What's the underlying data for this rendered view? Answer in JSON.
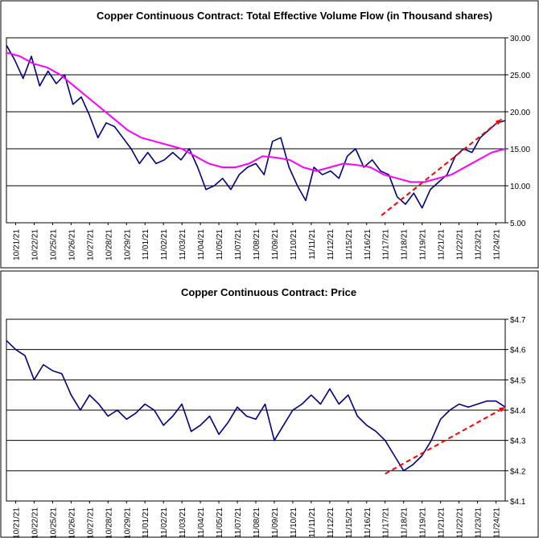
{
  "chart_data": [
    {
      "type": "line",
      "title": "Copper Continuous Contract: Total Effective Volume Flow (in Thousand shares)",
      "x_labels": [
        "10/21/21",
        "10/22/21",
        "10/25/21",
        "10/26/21",
        "10/27/21",
        "10/28/21",
        "10/29/21",
        "11/01/21",
        "11/02/21",
        "11/03/21",
        "11/04/21",
        "11/05/21",
        "11/07/21",
        "11/08/21",
        "11/09/21",
        "11/10/21",
        "11/11/21",
        "11/12/21",
        "11/15/21",
        "11/16/21",
        "11/17/21",
        "11/18/21",
        "11/19/21",
        "11/21/21",
        "11/22/21",
        "11/23/21",
        "11/24/21"
      ],
      "y_ticks": [
        "5.00",
        "10.00",
        "15.00",
        "20.00",
        "25.00",
        "30.00"
      ],
      "ylim": [
        5,
        30
      ],
      "y_axis_side": "right",
      "grid": true,
      "series": [
        {
          "color": "#000080",
          "values": [
            29.0,
            27.0,
            24.5,
            27.5,
            23.5,
            25.5,
            23.8,
            25.0,
            21.0,
            22.0,
            19.5,
            16.5,
            18.5,
            18.0,
            16.5,
            15.0,
            13.0,
            14.5,
            13.0,
            13.5,
            14.5,
            13.5,
            15.0,
            12.5,
            9.5,
            10.0,
            11.0,
            9.5,
            11.5,
            12.5,
            13.0,
            11.5,
            16.0,
            16.5,
            12.5,
            10.0,
            8.0,
            12.5,
            11.5,
            12.0,
            11.0,
            14.0,
            15.0,
            12.5,
            13.5,
            12.0,
            11.5,
            8.5,
            7.5,
            9.0,
            7.0,
            9.5,
            10.5,
            11.5,
            14.0,
            15.0,
            14.5,
            16.5,
            17.5,
            18.5,
            18.8
          ]
        },
        {
          "color": "#ff00ff",
          "values": [
            28.0,
            27.5,
            26.5,
            26.0,
            25.0,
            23.5,
            22.0,
            20.5,
            19.0,
            17.5,
            16.5,
            16.0,
            15.5,
            15.0,
            14.0,
            13.0,
            12.5,
            12.5,
            13.0,
            14.0,
            13.8,
            13.5,
            12.5,
            12.0,
            12.5,
            13.0,
            12.8,
            12.5,
            11.5,
            11.0,
            10.5,
            10.5,
            11.0,
            11.5,
            12.5,
            13.5,
            14.5,
            15.0
          ]
        }
      ],
      "trendline": {
        "color": "#ff0000",
        "style": "dashed",
        "from": [
          20.3,
          6.0
        ],
        "to": [
          26.8,
          19.0
        ]
      }
    },
    {
      "type": "line",
      "title": "Copper Continuous Contract: Price",
      "x_labels": [
        "10/21/21",
        "10/22/21",
        "10/25/21",
        "10/26/21",
        "10/27/21",
        "10/28/21",
        "10/29/21",
        "11/01/21",
        "11/02/21",
        "11/03/21",
        "11/04/21",
        "11/05/21",
        "11/07/21",
        "11/08/21",
        "11/09/21",
        "11/10/21",
        "11/11/21",
        "11/12/21",
        "11/15/21",
        "11/16/21",
        "11/17/21",
        "11/18/21",
        "11/19/21",
        "11/21/21",
        "11/22/21",
        "11/23/21",
        "11/24/21"
      ],
      "y_ticks": [
        "$4.1",
        "$4.2",
        "$4.3",
        "$4.4",
        "$4.5",
        "$4.6",
        "$4.7"
      ],
      "ylim": [
        4.1,
        4.7
      ],
      "y_axis_side": "right",
      "grid": true,
      "series": [
        {
          "color": "#000080",
          "values": [
            4.63,
            4.6,
            4.58,
            4.5,
            4.55,
            4.53,
            4.52,
            4.45,
            4.4,
            4.45,
            4.42,
            4.38,
            4.4,
            4.37,
            4.39,
            4.42,
            4.4,
            4.35,
            4.38,
            4.42,
            4.33,
            4.35,
            4.38,
            4.32,
            4.36,
            4.41,
            4.38,
            4.37,
            4.42,
            4.3,
            4.35,
            4.4,
            4.42,
            4.45,
            4.42,
            4.47,
            4.42,
            4.45,
            4.38,
            4.35,
            4.33,
            4.3,
            4.25,
            4.2,
            4.22,
            4.25,
            4.3,
            4.37,
            4.4,
            4.42,
            4.41,
            4.42,
            4.43,
            4.43,
            4.41
          ]
        }
      ],
      "trendline": {
        "color": "#ff0000",
        "style": "dashed",
        "from": [
          20.5,
          4.19
        ],
        "to": [
          27.0,
          4.41
        ]
      }
    }
  ]
}
